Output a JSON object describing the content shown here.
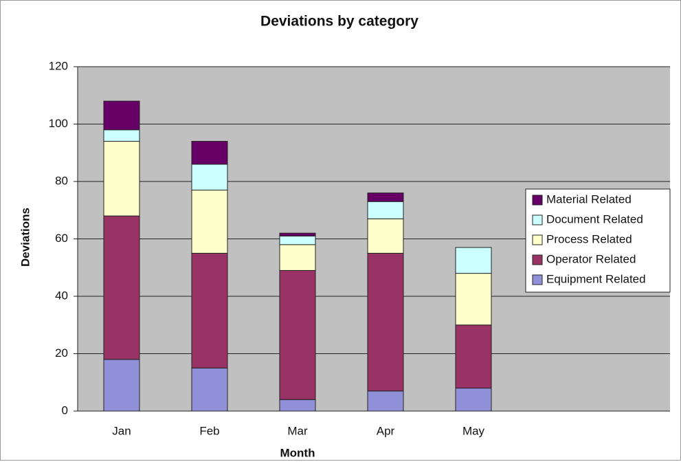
{
  "chart_data": {
    "type": "stacked-bar",
    "title": "Deviations by category",
    "x_label": "Month",
    "y_label": "Deviations",
    "categories": [
      "Jan",
      "Feb",
      "Mar",
      "Apr",
      "May"
    ],
    "series": [
      {
        "name": "Equipment Related",
        "color": "#9090d8",
        "values": [
          18,
          15,
          4,
          7,
          8
        ]
      },
      {
        "name": "Operator Related",
        "color": "#993366",
        "values": [
          50,
          40,
          45,
          48,
          22
        ]
      },
      {
        "name": "Process Related",
        "color": "#ffffcc",
        "values": [
          26,
          22,
          9,
          12,
          18
        ]
      },
      {
        "name": "Document Related",
        "color": "#ccffff",
        "values": [
          4,
          9,
          3,
          6,
          9
        ]
      },
      {
        "name": "Material Related",
        "color": "#660066",
        "values": [
          10,
          8,
          1,
          3,
          0
        ]
      }
    ],
    "ylim": [
      0,
      120
    ],
    "yticks": [
      0,
      20,
      40,
      60,
      80,
      100,
      120
    ],
    "grid": true,
    "legend": "right"
  }
}
